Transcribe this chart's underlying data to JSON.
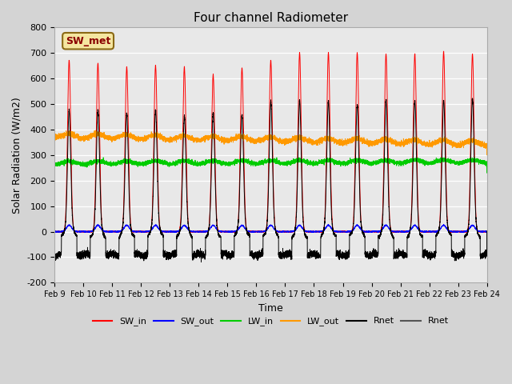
{
  "title": "Four channel Radiometer",
  "xlabel": "Time",
  "ylabel": "Solar Radiation (W/m2)",
  "ylim": [
    -200,
    800
  ],
  "xlim": [
    0,
    15
  ],
  "fig_facecolor": "#d4d4d4",
  "ax_facecolor": "#e8e8e8",
  "annotation_text": "SW_met",
  "annotation_bg": "#f5e6a0",
  "annotation_border": "#8b6914",
  "series_colors": {
    "SW_in": "#ff0000",
    "SW_out": "#0000ff",
    "LW_in": "#00cc00",
    "LW_out": "#ff9900",
    "Rnet": "#000000"
  },
  "xtick_labels": [
    "Feb 9",
    "Feb 10",
    "Feb 11",
    "Feb 12",
    "Feb 13",
    "Feb 14",
    "Feb 15",
    "Feb 16",
    "Feb 17",
    "Feb 18",
    "Feb 19",
    "Feb 20",
    "Feb 21",
    "Feb 22",
    "Feb 23",
    "Feb 24"
  ],
  "xtick_positions": [
    0,
    1,
    2,
    3,
    4,
    5,
    6,
    7,
    8,
    9,
    10,
    11,
    12,
    13,
    14,
    15
  ],
  "ytick_labels": [
    "-200",
    "-100",
    "0",
    "100",
    "200",
    "300",
    "400",
    "500",
    "600",
    "700",
    "800"
  ],
  "ytick_positions": [
    -200,
    -100,
    0,
    100,
    200,
    300,
    400,
    500,
    600,
    700,
    800
  ],
  "legend_entries": [
    {
      "label": "SW_in",
      "color": "#ff0000"
    },
    {
      "label": "SW_out",
      "color": "#0000ff"
    },
    {
      "label": "LW_in",
      "color": "#00cc00"
    },
    {
      "label": "LW_out",
      "color": "#ff9900"
    },
    {
      "label": "Rnet",
      "color": "#000000"
    },
    {
      "label": "Rnet",
      "color": "#555555"
    }
  ],
  "peak_heights_SW_in": [
    670,
    660,
    645,
    650,
    645,
    615,
    640,
    670,
    700,
    700,
    700,
    695,
    695,
    705,
    695
  ],
  "peak_heights_Rnet": [
    480,
    470,
    460,
    480,
    450,
    460,
    460,
    510,
    510,
    510,
    500,
    510,
    510,
    520,
    520
  ],
  "num_days": 15,
  "pts_per_day": 500
}
